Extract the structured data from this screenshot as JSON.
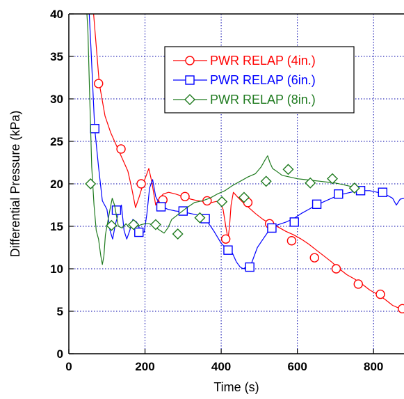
{
  "chart_data": {
    "type": "line",
    "title": "",
    "xlabel": "Time (s)",
    "ylabel": "Differential Pressure (kPa)",
    "xlim": [
      0,
      880
    ],
    "ylim": [
      0,
      40
    ],
    "xticks": [
      0,
      200,
      400,
      600,
      800
    ],
    "yticks": [
      0,
      5,
      10,
      15,
      20,
      25,
      30,
      35,
      40
    ],
    "xtick_labels": [
      "0",
      "200",
      "400",
      "600",
      "800"
    ],
    "ytick_labels": [
      "0",
      "5",
      "10",
      "15",
      "20",
      "25",
      "30",
      "35",
      "40"
    ],
    "grid": true,
    "legend_position": "top-right",
    "series": [
      {
        "name": "PWR RELAP (4in.)",
        "color": "#ff0000",
        "marker": "circle",
        "x": [
          55,
          65,
          80,
          95,
          110,
          125,
          140,
          155,
          165,
          175,
          185,
          195,
          205,
          210,
          218,
          228,
          238,
          248,
          262,
          280,
          300,
          320,
          340,
          360,
          375,
          385,
          395,
          405,
          412,
          418,
          422,
          426,
          432,
          442,
          455,
          470,
          490,
          510,
          530,
          550,
          570,
          590,
          610,
          630,
          650,
          670,
          690,
          710,
          730,
          750,
          770,
          790,
          810,
          830,
          850,
          870,
          880
        ],
        "y": [
          50,
          40,
          31.8,
          28,
          26,
          24.5,
          23,
          21.5,
          19.5,
          17.2,
          18.5,
          20,
          21.2,
          21.8,
          20.2,
          17.5,
          18.3,
          18.8,
          19,
          18.8,
          18.5,
          18.2,
          18,
          17.9,
          17.8,
          17.9,
          18,
          17,
          15,
          13.5,
          15,
          17.5,
          19,
          18.5,
          17.9,
          17.3,
          16.5,
          15.8,
          15.3,
          14.9,
          14.4,
          14,
          13.5,
          12.9,
          12.2,
          11.5,
          10.8,
          10,
          9.3,
          8.8,
          8.2,
          7.5,
          7,
          6.4,
          5.7,
          5.3,
          5.1
        ],
        "marker_x": [
          78,
          137,
          190,
          247,
          305,
          363,
          412,
          470,
          527,
          585,
          645,
          702,
          760,
          818,
          876
        ],
        "marker_y": [
          31.8,
          24.1,
          20,
          18.1,
          18.5,
          18,
          13.5,
          17.8,
          15.3,
          13.3,
          11.3,
          10,
          8.2,
          7,
          5.3
        ]
      },
      {
        "name": "PWR RELAP (6in.)",
        "color": "#0000ff",
        "marker": "square",
        "x": [
          48,
          58,
          68,
          78,
          88,
          100,
          108,
          115,
          122,
          130,
          138,
          145,
          152,
          160,
          168,
          178,
          188,
          198,
          205,
          212,
          220,
          228,
          236,
          245,
          260,
          280,
          300,
          320,
          340,
          360,
          380,
          400,
          415,
          428,
          440,
          450,
          458,
          465,
          472,
          480,
          495,
          510,
          530,
          550,
          570,
          590,
          610,
          630,
          650,
          670,
          690,
          710,
          730,
          750,
          770,
          790,
          810,
          830,
          850,
          860,
          870,
          880
        ],
        "y": [
          45,
          36,
          26.5,
          22,
          18,
          17,
          14.5,
          13.5,
          15.2,
          16.5,
          17.5,
          14.5,
          13.5,
          14.5,
          15.8,
          15.5,
          14.5,
          14.3,
          16.5,
          19.5,
          20.5,
          18.5,
          17.8,
          17.3,
          17,
          16.8,
          16.7,
          16.5,
          16.3,
          15.8,
          14.5,
          13,
          12.3,
          12,
          10.8,
          10.2,
          10,
          10.2,
          10.3,
          10.7,
          12.5,
          13.5,
          14.8,
          15.2,
          15.5,
          15.9,
          16.5,
          17,
          17.5,
          17.9,
          18.3,
          18.7,
          18.9,
          19.1,
          19.2,
          19.2,
          19,
          18.8,
          18.3,
          17.5,
          18.2,
          18.3
        ],
        "marker_x": [
          68,
          125,
          184,
          242,
          300,
          358,
          418,
          475,
          533,
          592,
          651,
          708,
          766,
          824
        ],
        "marker_y": [
          26.5,
          16.9,
          14.3,
          17.3,
          16.8,
          15.9,
          12.2,
          10.2,
          14.8,
          15.5,
          17.6,
          18.8,
          19.2,
          19
        ]
      },
      {
        "name": "PWR RELAP (8in.)",
        "color": "#1e7a1e",
        "marker": "diamond",
        "x": [
          40,
          45,
          50,
          55,
          60,
          66,
          72,
          78,
          84,
          88,
          92,
          96,
          102,
          108,
          114,
          120,
          130,
          140,
          150,
          160,
          170,
          180,
          190,
          200,
          210,
          220,
          230,
          240,
          250,
          260,
          270,
          290,
          310,
          330,
          350,
          370,
          390,
          410,
          430,
          450,
          470,
          490,
          505,
          515,
          522,
          528,
          535,
          545,
          560,
          580,
          600,
          620,
          640,
          660,
          680,
          700,
          720,
          740,
          760
        ],
        "y": [
          50,
          42,
          38,
          30,
          22,
          17.5,
          14.5,
          13.5,
          11.5,
          10.5,
          11.5,
          14,
          15.5,
          17,
          18.3,
          17.5,
          15,
          14.8,
          15.3,
          14.8,
          15,
          15,
          15.2,
          15.3,
          15.3,
          15.2,
          14.8,
          14.5,
          14.2,
          14.8,
          15.8,
          16.5,
          17.2,
          17.8,
          18,
          18.3,
          18.8,
          19.2,
          19.8,
          20.3,
          20.8,
          21.2,
          22,
          22.8,
          23.3,
          22.5,
          21.8,
          21.5,
          21,
          20.8,
          20.6,
          20.5,
          20.4,
          20.3,
          20.2,
          20.1,
          19.9,
          19.7,
          19.5
        ],
        "marker_x": [
          57,
          112,
          170,
          228,
          286,
          344,
          402,
          460,
          518,
          576,
          634,
          692,
          750
        ],
        "marker_y": [
          20,
          15.1,
          15.2,
          15.2,
          14.1,
          16,
          17.9,
          18.4,
          20.3,
          21.7,
          20.1,
          20.6,
          19.5
        ]
      }
    ]
  }
}
